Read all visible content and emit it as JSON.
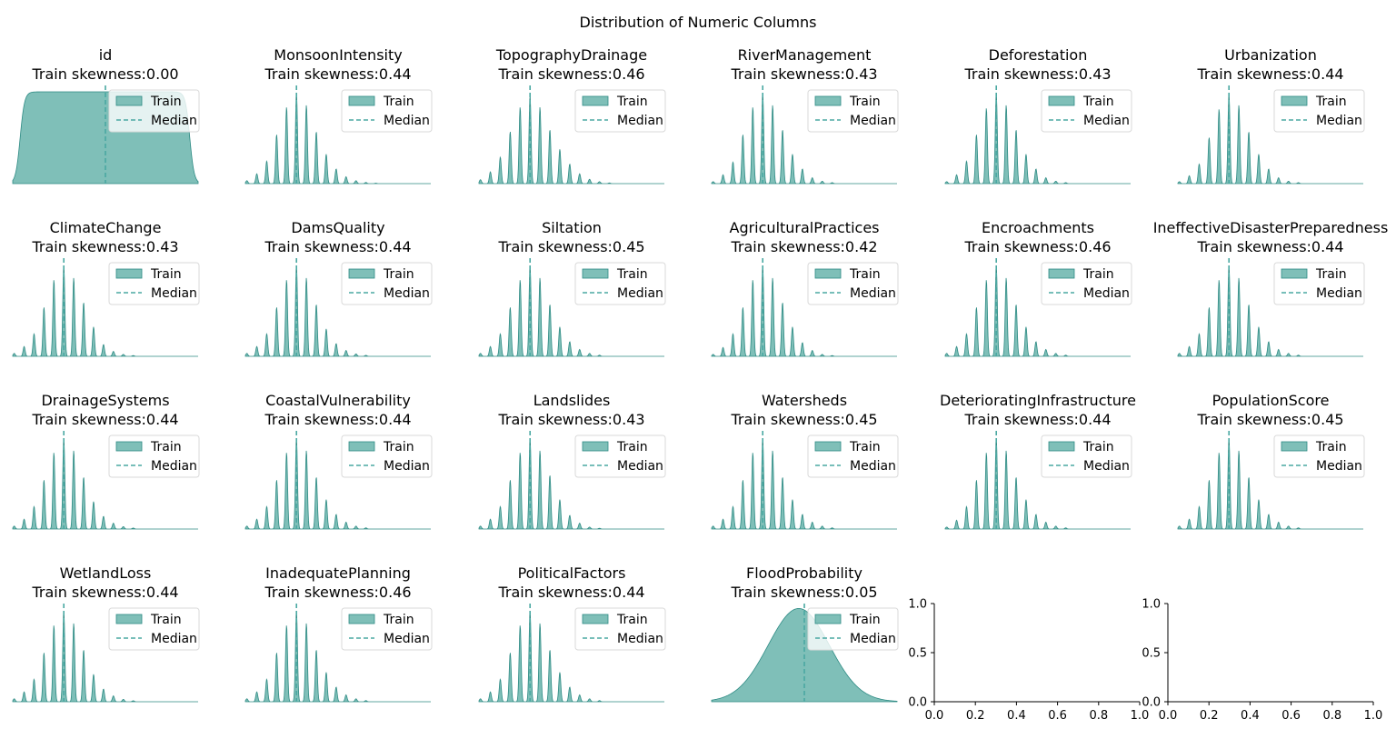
{
  "figure": {
    "title": "Distribution of Numeric Columns"
  },
  "colors": {
    "fill": "#7fbfb8",
    "edge": "#2e8b84",
    "median": "#4aa8a2"
  },
  "legend": {
    "train_label": "Train",
    "median_label": "Median"
  },
  "empty_axes": {
    "ticks": [
      "0.0",
      "0.2",
      "0.4",
      "0.6",
      "0.8",
      "1.0"
    ],
    "yticks": [
      "0.0",
      "0.5",
      "1.0"
    ]
  },
  "chart_data": [
    {
      "type": "area",
      "name": "id",
      "skew_label": "Train skewness:0.00",
      "shape": "uniform",
      "median": 0.5
    },
    {
      "type": "area",
      "name": "MonsoonIntensity",
      "skew_label": "Train skewness:0.44",
      "shape": "discrete",
      "peaks": [
        0.03,
        0.1,
        0.23,
        0.5,
        0.78,
        0.93,
        0.8,
        0.53,
        0.3,
        0.15,
        0.07,
        0.03,
        0.012,
        0.004
      ],
      "median": 5
    },
    {
      "type": "area",
      "name": "TopographyDrainage",
      "skew_label": "Train skewness:0.46",
      "shape": "discrete",
      "peaks": [
        0.04,
        0.12,
        0.27,
        0.53,
        0.78,
        0.9,
        0.78,
        0.55,
        0.35,
        0.2,
        0.1,
        0.045,
        0.02,
        0.007
      ],
      "median": 5
    },
    {
      "type": "area",
      "name": "RiverManagement",
      "skew_label": "Train skewness:0.43",
      "shape": "discrete",
      "peaks": [
        0.02,
        0.09,
        0.22,
        0.5,
        0.78,
        0.93,
        0.8,
        0.55,
        0.3,
        0.15,
        0.06,
        0.025,
        0.01
      ],
      "median": 5
    },
    {
      "type": "area",
      "name": "Deforestation",
      "skew_label": "Train skewness:0.43",
      "shape": "discrete",
      "peaks": [
        0.02,
        0.09,
        0.23,
        0.5,
        0.77,
        0.92,
        0.8,
        0.55,
        0.3,
        0.15,
        0.06,
        0.025,
        0.01
      ],
      "median": 5
    },
    {
      "type": "area",
      "name": "Urbanization",
      "skew_label": "Train skewness:0.44",
      "shape": "discrete",
      "peaks": [
        0.02,
        0.08,
        0.2,
        0.47,
        0.76,
        0.92,
        0.8,
        0.53,
        0.3,
        0.15,
        0.06,
        0.025,
        0.01
      ],
      "median": 5
    },
    {
      "type": "area",
      "name": "ClimateChange",
      "skew_label": "Train skewness:0.43",
      "shape": "discrete",
      "peaks": [
        0.03,
        0.1,
        0.23,
        0.5,
        0.78,
        0.93,
        0.8,
        0.55,
        0.3,
        0.12,
        0.05,
        0.02,
        0.008
      ],
      "median": 5
    },
    {
      "type": "area",
      "name": "DamsQuality",
      "skew_label": "Train skewness:0.44",
      "shape": "discrete",
      "peaks": [
        0.03,
        0.1,
        0.23,
        0.5,
        0.78,
        0.93,
        0.8,
        0.53,
        0.28,
        0.13,
        0.06,
        0.025,
        0.01
      ],
      "median": 5
    },
    {
      "type": "area",
      "name": "Siltation",
      "skew_label": "Train skewness:0.45",
      "shape": "discrete",
      "peaks": [
        0.03,
        0.1,
        0.23,
        0.5,
        0.78,
        0.93,
        0.8,
        0.53,
        0.3,
        0.15,
        0.07,
        0.03,
        0.012
      ],
      "median": 5
    },
    {
      "type": "area",
      "name": "AgriculturalPractices",
      "skew_label": "Train skewness:0.42",
      "shape": "discrete",
      "peaks": [
        0.02,
        0.09,
        0.23,
        0.5,
        0.78,
        0.93,
        0.8,
        0.55,
        0.3,
        0.14,
        0.06,
        0.02,
        0.008
      ],
      "median": 5
    },
    {
      "type": "area",
      "name": "Encroachments",
      "skew_label": "Train skewness:0.46",
      "shape": "discrete",
      "peaks": [
        0.03,
        0.1,
        0.23,
        0.5,
        0.78,
        0.93,
        0.8,
        0.53,
        0.3,
        0.15,
        0.07,
        0.03,
        0.012
      ],
      "median": 5
    },
    {
      "type": "area",
      "name": "IneffectiveDisasterPreparedness",
      "skew_label": "Train skewness:0.44",
      "shape": "discrete",
      "peaks": [
        0.03,
        0.1,
        0.23,
        0.5,
        0.78,
        0.93,
        0.8,
        0.53,
        0.3,
        0.15,
        0.07,
        0.03,
        0.012
      ],
      "median": 5
    },
    {
      "type": "area",
      "name": "DrainageSystems",
      "skew_label": "Train skewness:0.44",
      "shape": "discrete",
      "peaks": [
        0.03,
        0.1,
        0.23,
        0.5,
        0.78,
        0.93,
        0.8,
        0.53,
        0.28,
        0.13,
        0.06,
        0.025,
        0.01
      ],
      "median": 5
    },
    {
      "type": "area",
      "name": "CoastalVulnerability",
      "skew_label": "Train skewness:0.44",
      "shape": "discrete",
      "peaks": [
        0.03,
        0.1,
        0.23,
        0.5,
        0.78,
        0.93,
        0.8,
        0.53,
        0.3,
        0.15,
        0.07,
        0.03,
        0.012
      ],
      "median": 5
    },
    {
      "type": "area",
      "name": "Landslides",
      "skew_label": "Train skewness:0.43",
      "shape": "discrete",
      "peaks": [
        0.03,
        0.1,
        0.23,
        0.5,
        0.78,
        0.93,
        0.8,
        0.55,
        0.3,
        0.14,
        0.06,
        0.02,
        0.008
      ],
      "median": 5
    },
    {
      "type": "area",
      "name": "Watersheds",
      "skew_label": "Train skewness:0.45",
      "shape": "discrete",
      "peaks": [
        0.03,
        0.1,
        0.23,
        0.5,
        0.78,
        0.93,
        0.8,
        0.53,
        0.3,
        0.15,
        0.07,
        0.03,
        0.012
      ],
      "median": 5
    },
    {
      "type": "area",
      "name": "DeterioratingInfrastructure",
      "skew_label": "Train skewness:0.44",
      "shape": "discrete",
      "peaks": [
        0.02,
        0.09,
        0.23,
        0.5,
        0.78,
        0.93,
        0.8,
        0.53,
        0.3,
        0.15,
        0.07,
        0.03,
        0.012
      ],
      "median": 5
    },
    {
      "type": "area",
      "name": "PopulationScore",
      "skew_label": "Train skewness:0.45",
      "shape": "discrete",
      "peaks": [
        0.03,
        0.1,
        0.23,
        0.5,
        0.78,
        0.93,
        0.8,
        0.53,
        0.3,
        0.15,
        0.07,
        0.03,
        0.012
      ],
      "median": 5
    },
    {
      "type": "area",
      "name": "WetlandLoss",
      "skew_label": "Train skewness:0.44",
      "shape": "discrete",
      "peaks": [
        0.03,
        0.1,
        0.23,
        0.5,
        0.78,
        0.93,
        0.8,
        0.53,
        0.28,
        0.13,
        0.06,
        0.025,
        0.01
      ],
      "median": 5
    },
    {
      "type": "area",
      "name": "InadequatePlanning",
      "skew_label": "Train skewness:0.46",
      "shape": "discrete",
      "peaks": [
        0.03,
        0.1,
        0.23,
        0.5,
        0.78,
        0.93,
        0.8,
        0.53,
        0.3,
        0.15,
        0.07,
        0.03,
        0.012
      ],
      "median": 5
    },
    {
      "type": "area",
      "name": "PoliticalFactors",
      "skew_label": "Train skewness:0.44",
      "shape": "discrete",
      "peaks": [
        0.03,
        0.1,
        0.23,
        0.5,
        0.78,
        0.93,
        0.8,
        0.53,
        0.3,
        0.15,
        0.07,
        0.03,
        0.012
      ],
      "median": 5
    },
    {
      "type": "area",
      "name": "FloodProbability",
      "skew_label": "Train skewness:0.05",
      "shape": "normal",
      "median": 0.5
    }
  ]
}
